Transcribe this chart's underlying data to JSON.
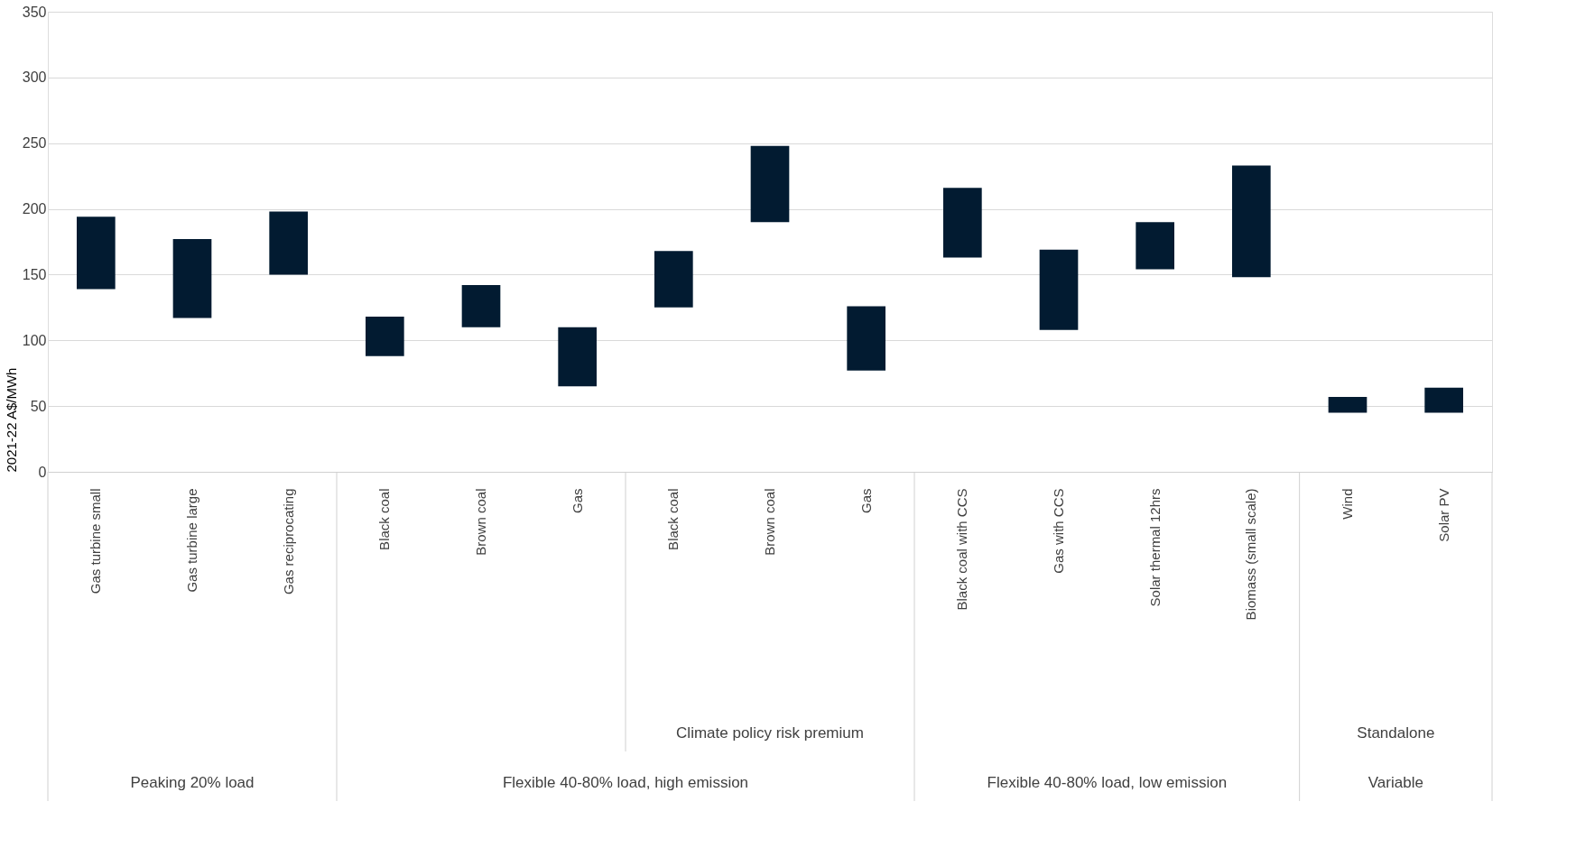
{
  "chart_data": {
    "type": "bar",
    "ylabel": "2021-22 A$/MWh",
    "categories": [
      "Gas turbine small",
      "Gas turbine large",
      "Gas reciprocating",
      "Black coal",
      "Brown coal",
      "Gas",
      "Black coal",
      "Brown coal",
      "Gas",
      "Black coal with CCS",
      "Gas with CCS",
      "Solar thermal 12hrs",
      "Biomass (small scale)",
      "Wind",
      "Solar PV"
    ],
    "base": [
      139,
      117,
      150,
      88,
      110,
      65,
      125,
      190,
      77,
      163,
      108,
      154,
      148,
      45,
      45
    ],
    "values": [
      55,
      60,
      48,
      30,
      32,
      45,
      43,
      58,
      49,
      53,
      61,
      36,
      85,
      12,
      19
    ],
    "color": "#021b31",
    "ylim": [
      0,
      350
    ],
    "yticks": [
      0,
      50,
      100,
      150,
      200,
      250,
      300,
      350
    ],
    "grid": "y",
    "annotations": [
      "Climate policy risk premium",
      "Standalone",
      "Peaking 20% load",
      "Flexible 40-80% load, high emission",
      "Flexible 40-80% load, low emission",
      "Variable"
    ]
  }
}
